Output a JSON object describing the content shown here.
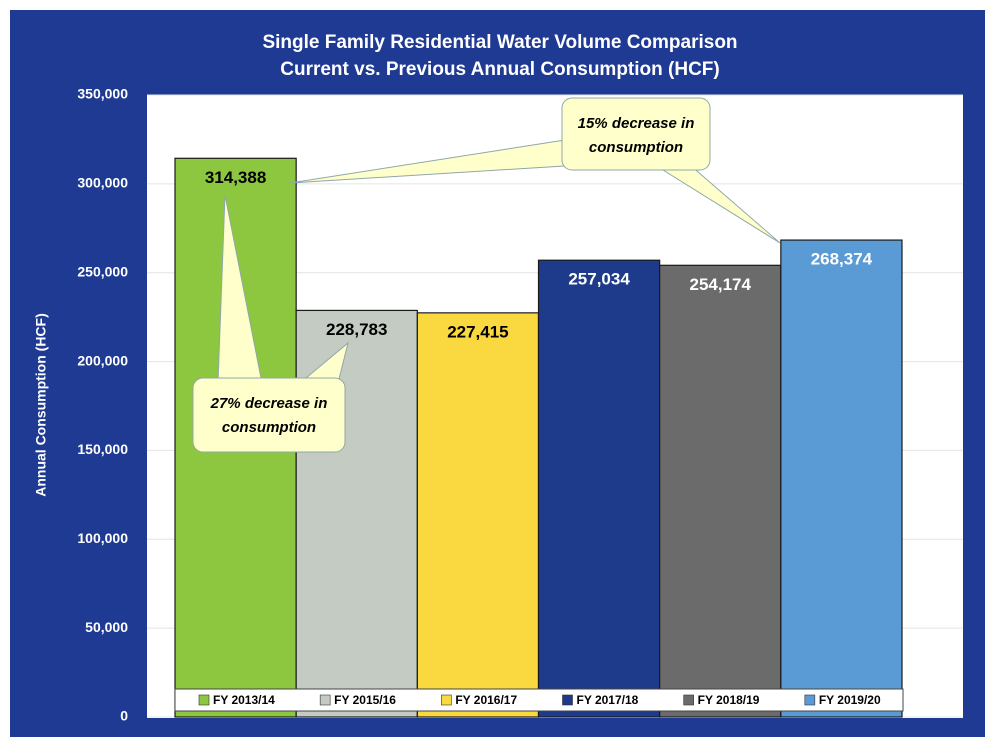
{
  "chart_data": {
    "type": "bar",
    "title": "Single Family Residential Water Volume Comparison",
    "subtitle": "Current vs. Previous Annual Consumption (HCF)",
    "y_label": "Annual Consumption (HCF)",
    "categories": [
      "FY 2013/14",
      "FY 2015/16",
      "FY 2016/17",
      "FY 2017/18",
      "FY 2018/19",
      "FY 2019/20"
    ],
    "values": [
      314388,
      228783,
      227415,
      257034,
      254174,
      268374
    ],
    "value_labels": [
      "314,388",
      "228,783",
      "227,415",
      "257,034",
      "254,174",
      "268,374"
    ],
    "colors": [
      "#8dc63f",
      "#c3cbc3",
      "#f9d840",
      "#1e3a8a",
      "#6b6b6b",
      "#5b9bd5"
    ],
    "label_colors": [
      "#000000",
      "#000000",
      "#000000",
      "#ffffff",
      "#ffffff",
      "#ffffff"
    ],
    "ylim": [
      0,
      350000
    ],
    "yticks": [
      0,
      {
        "value": 50000,
        "label": "50,000"
      },
      {
        "value": 100000,
        "label": "100,000"
      },
      {
        "value": 150000,
        "label": "150,000"
      },
      {
        "value": 200000,
        "label": "200,000"
      },
      {
        "value": 250000,
        "label": "250,000"
      },
      {
        "value": 300000,
        "label": "300,000"
      },
      {
        "value": 350000,
        "label": "350,000"
      }
    ],
    "grid": true,
    "legend": "bottom",
    "annotations": [
      [
        "15% decrease  in",
        "consumption"
      ],
      [
        "27% decrease  in",
        "consumption"
      ]
    ]
  }
}
